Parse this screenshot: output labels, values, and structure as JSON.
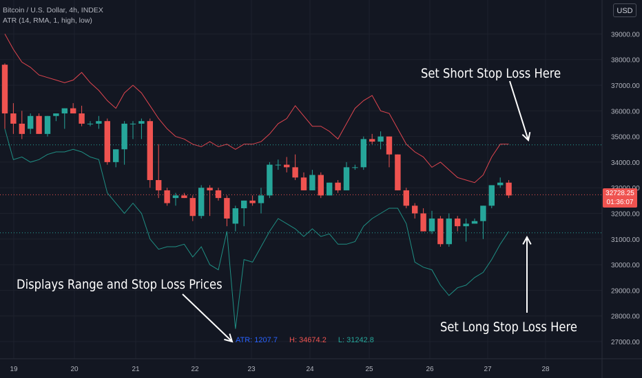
{
  "header": {
    "title": "Bitcoin / U.S. Dollar, 4h, INDEX",
    "indicator": "ATR (14, RMA, 1, high, low)",
    "currency": "USD"
  },
  "price_tag": {
    "price": "32728.25",
    "countdown": "01:36:07"
  },
  "atr_readout": {
    "atr": "ATR: 1207.7",
    "high": "H: 34674.2",
    "low": "L: 31242.8"
  },
  "annotations": {
    "short": "Set Short Stop Loss Here",
    "long": "Set Long Stop Loss Here",
    "range": "Displays Range and Stop Loss Prices"
  },
  "colors": {
    "up": "#26a69a",
    "down": "#ef5350",
    "upper_band": "#e0454f",
    "lower_band": "#1f8f84",
    "grid": "#1e222d",
    "axis_text": "#b2b5be",
    "background": "#131722",
    "atr_text": "#2962ff"
  },
  "chart_data": {
    "type": "candlestick",
    "x_axis": {
      "ticks": [
        "19",
        "20",
        "21",
        "22",
        "23",
        "24",
        "25",
        "26",
        "27",
        "28"
      ]
    },
    "y_axis": {
      "range": [
        26400,
        40000
      ],
      "ticks": [
        "27000.00",
        "28000.00",
        "29000.00",
        "30000.00",
        "31000.00",
        "32000.00",
        "33000.00",
        "34000.00",
        "35000.00",
        "36000.00",
        "37000.00",
        "38000.00",
        "39000.00"
      ]
    },
    "candles": [
      {
        "o": 37800,
        "h": 37850,
        "l": 35300,
        "c": 35900
      },
      {
        "o": 35900,
        "h": 36300,
        "l": 35100,
        "c": 35500
      },
      {
        "o": 35500,
        "h": 36000,
        "l": 34900,
        "c": 35100
      },
      {
        "o": 35300,
        "h": 35900,
        "l": 35100,
        "c": 35800
      },
      {
        "o": 35800,
        "h": 35900,
        "l": 35100,
        "c": 35100
      },
      {
        "o": 35100,
        "h": 35800,
        "l": 35000,
        "c": 35800
      },
      {
        "o": 35800,
        "h": 35900,
        "l": 35600,
        "c": 35900
      },
      {
        "o": 35900,
        "h": 36100,
        "l": 35300,
        "c": 36100
      },
      {
        "o": 36100,
        "h": 36300,
        "l": 35900,
        "c": 35900
      },
      {
        "o": 35900,
        "h": 36200,
        "l": 35400,
        "c": 35500
      },
      {
        "o": 35500,
        "h": 35600,
        "l": 35400,
        "c": 35500
      },
      {
        "o": 35500,
        "h": 35800,
        "l": 35300,
        "c": 35600
      },
      {
        "o": 35600,
        "h": 35700,
        "l": 33900,
        "c": 34000
      },
      {
        "o": 34000,
        "h": 34500,
        "l": 33800,
        "c": 34500
      },
      {
        "o": 34500,
        "h": 35600,
        "l": 33900,
        "c": 35500
      },
      {
        "o": 35500,
        "h": 35600,
        "l": 34900,
        "c": 35500
      },
      {
        "o": 35500,
        "h": 35700,
        "l": 34900,
        "c": 35600
      },
      {
        "o": 35600,
        "h": 35700,
        "l": 33000,
        "c": 33300
      },
      {
        "o": 33300,
        "h": 34700,
        "l": 32600,
        "c": 32900
      },
      {
        "o": 32900,
        "h": 33000,
        "l": 32300,
        "c": 32400
      },
      {
        "o": 32600,
        "h": 32800,
        "l": 32300,
        "c": 32700
      },
      {
        "o": 32700,
        "h": 32800,
        "l": 32600,
        "c": 32600
      },
      {
        "o": 32600,
        "h": 32700,
        "l": 31700,
        "c": 31900
      },
      {
        "o": 31900,
        "h": 33100,
        "l": 31800,
        "c": 33000
      },
      {
        "o": 33000,
        "h": 33100,
        "l": 31900,
        "c": 32900
      },
      {
        "o": 32900,
        "h": 33000,
        "l": 32500,
        "c": 32600
      },
      {
        "o": 32600,
        "h": 32700,
        "l": 31500,
        "c": 31800
      },
      {
        "o": 31600,
        "h": 32300,
        "l": 31300,
        "c": 32200
      },
      {
        "o": 32200,
        "h": 32500,
        "l": 31500,
        "c": 32500
      },
      {
        "o": 32500,
        "h": 32700,
        "l": 32300,
        "c": 32400
      },
      {
        "o": 32400,
        "h": 33000,
        "l": 32000,
        "c": 32700
      },
      {
        "o": 32700,
        "h": 34000,
        "l": 32600,
        "c": 33900
      },
      {
        "o": 33900,
        "h": 34100,
        "l": 33700,
        "c": 33900
      },
      {
        "o": 33900,
        "h": 34200,
        "l": 33600,
        "c": 33800
      },
      {
        "o": 33800,
        "h": 34300,
        "l": 33300,
        "c": 33400
      },
      {
        "o": 33400,
        "h": 33600,
        "l": 32900,
        "c": 32900
      },
      {
        "o": 32900,
        "h": 33700,
        "l": 32900,
        "c": 33500
      },
      {
        "o": 33500,
        "h": 33600,
        "l": 32600,
        "c": 32700
      },
      {
        "o": 32700,
        "h": 33200,
        "l": 32700,
        "c": 33200
      },
      {
        "o": 33200,
        "h": 33300,
        "l": 32800,
        "c": 32900
      },
      {
        "o": 32900,
        "h": 34000,
        "l": 32900,
        "c": 33800
      },
      {
        "o": 33800,
        "h": 33900,
        "l": 33700,
        "c": 33800
      },
      {
        "o": 33800,
        "h": 35000,
        "l": 33700,
        "c": 34900
      },
      {
        "o": 34900,
        "h": 35100,
        "l": 34700,
        "c": 34800
      },
      {
        "o": 34800,
        "h": 35200,
        "l": 34500,
        "c": 35000
      },
      {
        "o": 35000,
        "h": 35000,
        "l": 33800,
        "c": 34300
      },
      {
        "o": 34300,
        "h": 34300,
        "l": 32900,
        "c": 32900
      },
      {
        "o": 32900,
        "h": 33000,
        "l": 32200,
        "c": 32300
      },
      {
        "o": 32300,
        "h": 32400,
        "l": 31800,
        "c": 32000
      },
      {
        "o": 32000,
        "h": 32200,
        "l": 31400,
        "c": 31300
      },
      {
        "o": 31300,
        "h": 32100,
        "l": 31200,
        "c": 31800
      },
      {
        "o": 31800,
        "h": 31900,
        "l": 30700,
        "c": 30800
      },
      {
        "o": 30800,
        "h": 32000,
        "l": 30700,
        "c": 31800
      },
      {
        "o": 31800,
        "h": 31900,
        "l": 31300,
        "c": 31500
      },
      {
        "o": 31500,
        "h": 31800,
        "l": 30900,
        "c": 31600
      },
      {
        "o": 31600,
        "h": 31800,
        "l": 31600,
        "c": 31700
      },
      {
        "o": 31700,
        "h": 32300,
        "l": 31000,
        "c": 32300
      },
      {
        "o": 32300,
        "h": 33100,
        "l": 32200,
        "c": 33100
      },
      {
        "o": 33100,
        "h": 33400,
        "l": 33000,
        "c": 33200
      },
      {
        "o": 33200,
        "h": 33300,
        "l": 32600,
        "c": 32700
      }
    ],
    "upper_band": [
      39000,
      38400,
      37900,
      37700,
      37400,
      37300,
      37200,
      37100,
      37200,
      37500,
      37100,
      36800,
      36400,
      36100,
      36700,
      37000,
      36700,
      36200,
      35700,
      35300,
      35000,
      34900,
      34700,
      34600,
      34800,
      34600,
      34700,
      34500,
      34700,
      34700,
      34800,
      35100,
      35500,
      35700,
      36200,
      35800,
      35400,
      35400,
      35200,
      34900,
      35500,
      36100,
      36400,
      36600,
      36000,
      35900,
      35300,
      34700,
      34400,
      34200,
      33800,
      34000,
      33700,
      33400,
      33300,
      33200,
      33500,
      34200,
      34700,
      34700
    ],
    "lower_band": [
      35300,
      34100,
      34200,
      34000,
      34100,
      34300,
      34400,
      34400,
      34500,
      34400,
      34200,
      34100,
      32800,
      32400,
      32000,
      32400,
      32000,
      31000,
      30600,
      30700,
      30700,
      30800,
      30300,
      30700,
      30000,
      29800,
      31300,
      27500,
      30200,
      30100,
      30700,
      31300,
      31800,
      31600,
      31400,
      31100,
      31400,
      31100,
      31200,
      30800,
      30800,
      30900,
      31500,
      31800,
      32000,
      32200,
      32200,
      31600,
      30100,
      29900,
      29800,
      29200,
      28800,
      29100,
      29200,
      29500,
      29700,
      30200,
      30800,
      31300
    ],
    "horizontal_levels": {
      "upper": 34674.2,
      "current": 32728.25,
      "lower": 31242.8
    }
  }
}
